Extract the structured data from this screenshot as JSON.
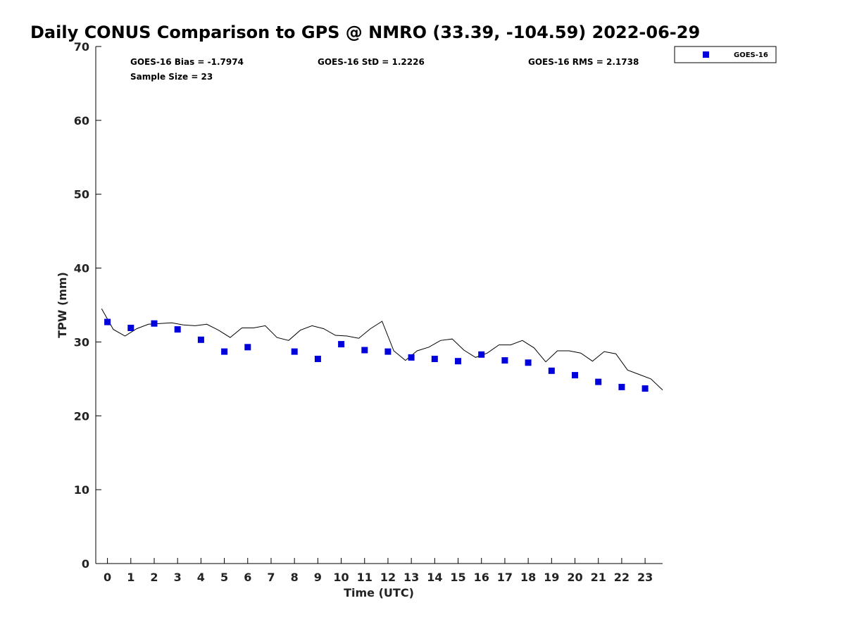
{
  "chart_data": {
    "type": "scatter",
    "title": "Daily CONUS Comparison to GPS @ NMRO (33.39, -104.59) 2022-06-29",
    "xlabel": "Time (UTC)",
    "ylabel": "TPW (mm)",
    "xlim": [
      -0.5,
      23.75
    ],
    "ylim": [
      0,
      70
    ],
    "x_ticks": [
      "0",
      "1",
      "2",
      "3",
      "4",
      "5",
      "6",
      "7",
      "8",
      "9",
      "10",
      "11",
      "12",
      "13",
      "14",
      "15",
      "16",
      "17",
      "18",
      "19",
      "20",
      "21",
      "22",
      "23"
    ],
    "y_ticks": [
      "0",
      "10",
      "20",
      "30",
      "40",
      "50",
      "60",
      "70"
    ],
    "grid": false,
    "legend_position": "top-right outside",
    "stats": {
      "bias": "GOES-16 Bias = -1.7974",
      "std": "GOES-16 StD = 1.2226",
      "rms": "GOES-16 RMS = 2.1738",
      "sample_size": "Sample Size = 23"
    },
    "series": [
      {
        "name": "GOES-16",
        "kind": "scatter",
        "marker": "square",
        "color": "#0000dd",
        "x": [
          0,
          1,
          2,
          3,
          4,
          5,
          6,
          8,
          9,
          10,
          11,
          12,
          13,
          14,
          15,
          16,
          17,
          18,
          19,
          20,
          21,
          22,
          23
        ],
        "y": [
          32.7,
          31.9,
          32.5,
          31.7,
          30.3,
          28.7,
          29.3,
          28.7,
          27.7,
          29.7,
          28.9,
          28.7,
          27.9,
          27.7,
          27.4,
          28.3,
          27.5,
          27.2,
          26.1,
          25.5,
          24.6,
          23.9,
          23.7
        ]
      },
      {
        "kind": "line",
        "color": "#000000",
        "x": [
          -0.25,
          0.25,
          0.75,
          1.25,
          1.75,
          2.25,
          2.75,
          3.25,
          3.75,
          4.25,
          4.75,
          5.25,
          5.75,
          6.25,
          6.75,
          7.25,
          7.75,
          8.25,
          8.75,
          9.25,
          9.75,
          10.25,
          10.75,
          11.25,
          11.75,
          12.25,
          12.75,
          13.25,
          13.75,
          14.25,
          14.75,
          15.25,
          15.75,
          16.25,
          16.75,
          17.25,
          17.75,
          18.25,
          18.75,
          19.25,
          19.75,
          20.25,
          20.75,
          21.25,
          21.75,
          22.25,
          22.75,
          23.25,
          23.75
        ],
        "y": [
          34.5,
          31.7,
          30.8,
          31.8,
          32.4,
          32.5,
          32.6,
          32.3,
          32.2,
          32.4,
          31.6,
          30.6,
          31.9,
          31.9,
          32.2,
          30.6,
          30.2,
          31.6,
          32.2,
          31.8,
          30.9,
          30.8,
          30.5,
          31.8,
          32.8,
          28.8,
          27.5,
          28.8,
          29.3,
          30.2,
          30.4,
          28.9,
          27.9,
          28.5,
          29.6,
          29.6,
          30.2,
          29.2,
          27.3,
          28.8,
          28.8,
          28.5,
          27.4,
          28.7,
          28.4,
          26.2,
          25.6,
          25.0,
          23.5
        ]
      }
    ]
  }
}
